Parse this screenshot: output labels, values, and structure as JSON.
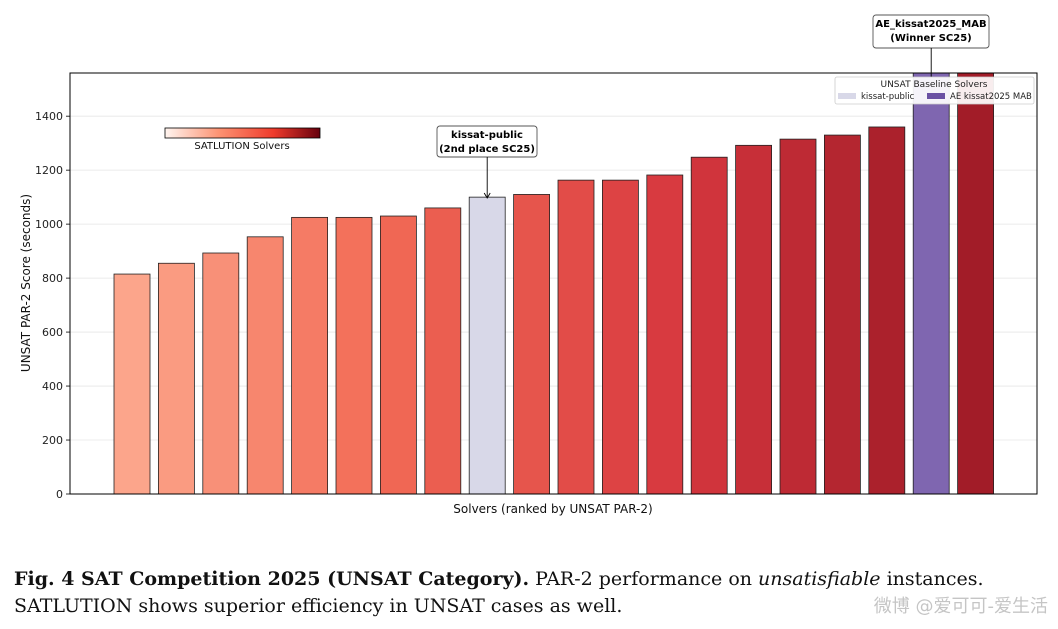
{
  "chart_data": {
    "type": "bar",
    "xlabel": "Solvers (ranked by UNSAT PAR-2)",
    "ylabel": "UNSAT PAR-2 Score (seconds)",
    "ylim": [
      0,
      1560
    ],
    "yticks": [
      0,
      200,
      400,
      600,
      800,
      1000,
      1200,
      1400
    ],
    "grid": "horizontal",
    "values": [
      815,
      855,
      893,
      953,
      1025,
      1025,
      1030,
      1060,
      1100,
      1110,
      1163,
      1163,
      1182,
      1248,
      1292,
      1315,
      1330,
      1360,
      1560,
      1560
    ],
    "bar_groups": [
      "satlution",
      "satlution",
      "satlution",
      "satlution",
      "satlution",
      "satlution",
      "satlution",
      "satlution",
      "kissat-public",
      "satlution",
      "satlution",
      "satlution",
      "satlution",
      "satlution",
      "satlution",
      "satlution",
      "satlution",
      "satlution",
      "AE_kissat2025_MAB",
      "satlution"
    ],
    "colorbar_label": "SATLUTION Solvers",
    "colors": {
      "kissat_public": "#d8d8e8",
      "ae_kissat": "#7f66b0",
      "satlution_light": "#fcae91",
      "satlution_dark": "#a50f15"
    },
    "annotations": [
      {
        "bar_index": 8,
        "line1": "kissat-public",
        "line2": "(2nd place SC\u00012025)"
      },
      {
        "bar_index": 18,
        "line1": "AE_kissat2025_MAB",
        "line2": "(Winner SC\u00012025)"
      }
    ],
    "legend": {
      "title": "UNSAT Baseline Solvers",
      "position": "top-right",
      "items": [
        {
          "label": "kissat-public",
          "color": "#d8d8e8"
        },
        {
          "label": "AE kissat2025 MAB",
          "color": "#6a51a3"
        }
      ]
    }
  },
  "caption": {
    "label": "Fig. 4 SAT Competition 2025 (UNSAT Category).",
    "text_a": " PAR-2 performance on ",
    "text_em": "unsatisfiable",
    "text_b": " instances. SATLUTION shows superior efficiency in UNSAT cases as well."
  },
  "watermark": "微博 @爱可可-爱生活"
}
